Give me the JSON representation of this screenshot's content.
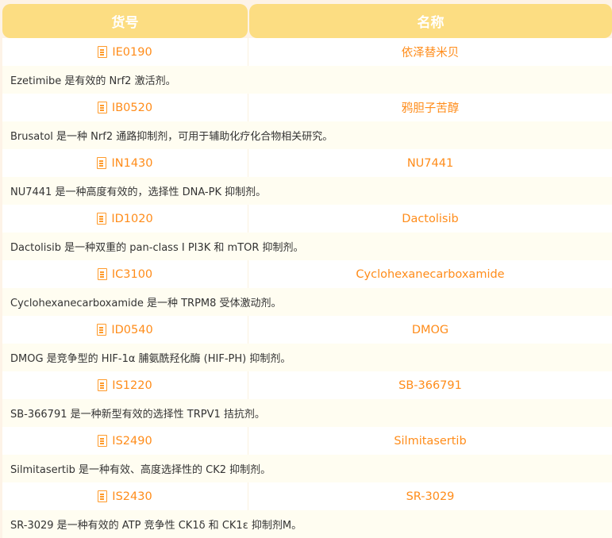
{
  "header": {
    "col1": "货号",
    "col2": "名称"
  },
  "colors": {
    "header_bg": "#fcdd82",
    "accent": "#ff8c1a"
  },
  "rows": [
    {
      "code": "IE0190",
      "name": "依泽替米贝",
      "desc": "Ezetimibe 是有效的 Nrf2 激活剂。"
    },
    {
      "code": "IB0520",
      "name": "鸦胆子苦醇",
      "desc": "Brusatol 是一种 Nrf2 通路抑制剂，可用于辅助化疗化合物相关研究。"
    },
    {
      "code": "IN1430",
      "name": "NU7441",
      "desc": "NU7441 是一种高度有效的，选择性 DNA-PK 抑制剂。"
    },
    {
      "code": "ID1020",
      "name": "Dactolisib",
      "desc": "Dactolisib 是一种双重的 pan-class I PI3K 和 mTOR 抑制剂。"
    },
    {
      "code": "IC3100",
      "name": "Cyclohexanecarboxamide",
      "desc": "Cyclohexanecarboxamide 是一种 TRPM8 受体激动剂。"
    },
    {
      "code": "ID0540",
      "name": "DMOG",
      "desc": "DMOG 是竞争型的 HIF-1α 脯氨酰羟化酶 (HIF-PH) 抑制剂。"
    },
    {
      "code": "IS1220",
      "name": "SB-366791",
      "desc": "SB-366791 是一种新型有效的选择性 TRPV1 拮抗剂。"
    },
    {
      "code": "IS2490",
      "name": "Silmitasertib",
      "desc": "Silmitasertib 是一种有效、高度选择性的 CK2 抑制剂。"
    },
    {
      "code": "IS2430",
      "name": "SR-3029",
      "desc": "SR-3029 是一种有效的 ATP 竞争性 CK1δ 和 CK1ε 抑制剂M。"
    }
  ]
}
